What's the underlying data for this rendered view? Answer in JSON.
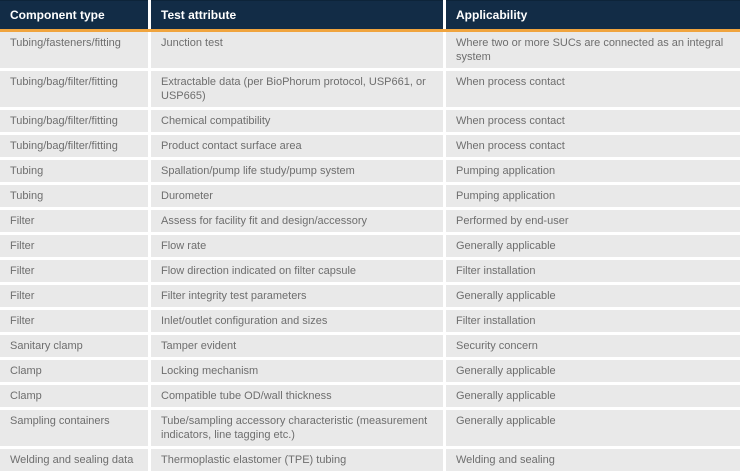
{
  "colors": {
    "header_bg": "#122c46",
    "header_text": "#ffffff",
    "accent_orange": "#f0a43e",
    "row_bg": "#e9e9e9",
    "row_text": "#6e6e6e"
  },
  "table": {
    "headers": [
      "Component type",
      "Test attribute",
      "Applicability"
    ],
    "rows": [
      {
        "component": "Tubing/fasteners/fitting",
        "attribute": "Junction test",
        "applicability": "Where two or more SUCs are connected as an integral system"
      },
      {
        "component": "Tubing/bag/filter/fitting",
        "attribute": "Extractable data (per BioPhorum protocol, USP661, or USP665)",
        "applicability": "When process contact"
      },
      {
        "component": "Tubing/bag/filter/fitting",
        "attribute": "Chemical compatibility",
        "applicability": "When process contact"
      },
      {
        "component": "Tubing/bag/filter/fitting",
        "attribute": "Product contact surface area",
        "applicability": "When process contact"
      },
      {
        "component": "Tubing",
        "attribute": "Spallation/pump life study/pump system",
        "applicability": "Pumping application"
      },
      {
        "component": "Tubing",
        "attribute": "Durometer",
        "applicability": "Pumping application"
      },
      {
        "component": "Filter",
        "attribute": "Assess for facility fit and design/accessory",
        "applicability": "Performed by end-user"
      },
      {
        "component": "Filter",
        "attribute": "Flow rate",
        "applicability": "Generally applicable"
      },
      {
        "component": "Filter",
        "attribute": "Flow direction indicated on filter capsule",
        "applicability": "Filter installation"
      },
      {
        "component": "Filter",
        "attribute": "Filter integrity test parameters",
        "applicability": "Generally applicable"
      },
      {
        "component": "Filter",
        "attribute": "Inlet/outlet configuration and sizes",
        "applicability": "Filter installation"
      },
      {
        "component": "Sanitary clamp",
        "attribute": "Tamper evident",
        "applicability": "Security concern"
      },
      {
        "component": "Clamp",
        "attribute": "Locking mechanism",
        "applicability": "Generally applicable"
      },
      {
        "component": "Clamp",
        "attribute": "Compatible tube OD/wall thickness",
        "applicability": "Generally applicable"
      },
      {
        "component": "Sampling containers",
        "attribute": "Tube/sampling accessory characteristic (measurement indicators, line tagging etc.)",
        "applicability": "Generally applicable"
      },
      {
        "component": "Welding and sealing data",
        "attribute": "Thermoplastic elastomer (TPE) tubing",
        "applicability": "Welding and sealing"
      }
    ]
  }
}
